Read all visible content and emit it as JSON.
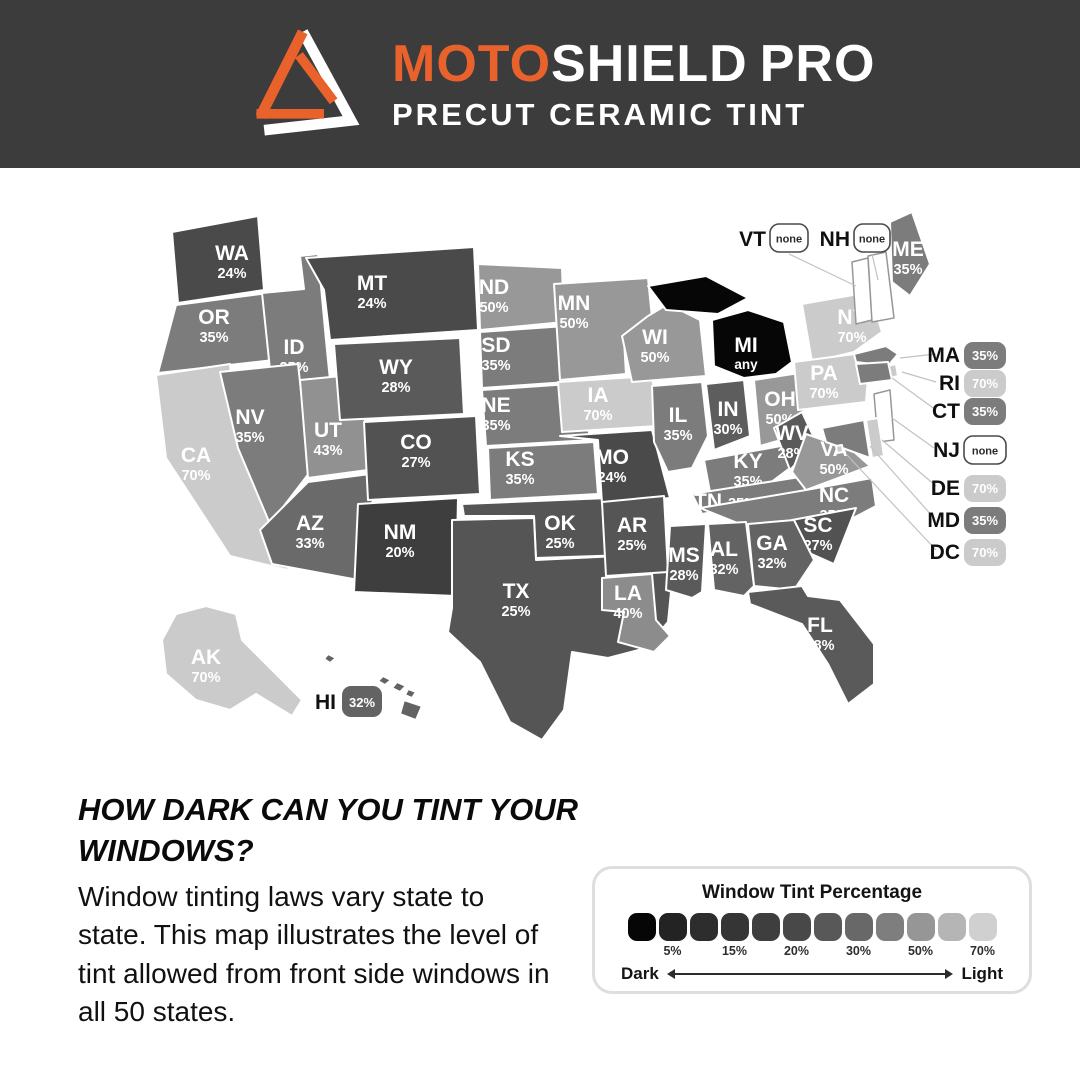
{
  "header": {
    "brand_moto": "MOTO",
    "brand_shield": "SHIELD",
    "brand_pro": "PRO",
    "subtitle": "PRECUT CERAMIC TINT",
    "background": "#3d3c3c",
    "accent": "#ea622b"
  },
  "map": {
    "states": [
      {
        "abbr": "WA",
        "value": "24%"
      },
      {
        "abbr": "OR",
        "value": "35%"
      },
      {
        "abbr": "CA",
        "value": "70%"
      },
      {
        "abbr": "ID",
        "value": "35%"
      },
      {
        "abbr": "NV",
        "value": "35%"
      },
      {
        "abbr": "UT",
        "value": "43%"
      },
      {
        "abbr": "AZ",
        "value": "33%"
      },
      {
        "abbr": "MT",
        "value": "24%"
      },
      {
        "abbr": "WY",
        "value": "28%"
      },
      {
        "abbr": "CO",
        "value": "27%"
      },
      {
        "abbr": "NM",
        "value": "20%"
      },
      {
        "abbr": "ND",
        "value": "50%"
      },
      {
        "abbr": "SD",
        "value": "35%"
      },
      {
        "abbr": "NE",
        "value": "35%"
      },
      {
        "abbr": "KS",
        "value": "35%"
      },
      {
        "abbr": "OK",
        "value": "25%"
      },
      {
        "abbr": "TX",
        "value": "25%"
      },
      {
        "abbr": "MN",
        "value": "50%"
      },
      {
        "abbr": "IA",
        "value": "70%"
      },
      {
        "abbr": "MO",
        "value": "24%"
      },
      {
        "abbr": "AR",
        "value": "25%"
      },
      {
        "abbr": "LA",
        "value": "40%"
      },
      {
        "abbr": "WI",
        "value": "50%"
      },
      {
        "abbr": "IL",
        "value": "35%"
      },
      {
        "abbr": "IN",
        "value": "30%"
      },
      {
        "abbr": "MI",
        "value": "any"
      },
      {
        "abbr": "OH",
        "value": "50%"
      },
      {
        "abbr": "KY",
        "value": "35%"
      },
      {
        "abbr": "TN",
        "value": "35%"
      },
      {
        "abbr": "WV",
        "value": "28%"
      },
      {
        "abbr": "VA",
        "value": "50%"
      },
      {
        "abbr": "NC",
        "value": "35%"
      },
      {
        "abbr": "SC",
        "value": "27%"
      },
      {
        "abbr": "GA",
        "value": "32%"
      },
      {
        "abbr": "AL",
        "value": "32%"
      },
      {
        "abbr": "MS",
        "value": "28%"
      },
      {
        "abbr": "FL",
        "value": "28%"
      },
      {
        "abbr": "NY",
        "value": "70%"
      },
      {
        "abbr": "PA",
        "value": "70%"
      },
      {
        "abbr": "ME",
        "value": "35%"
      },
      {
        "abbr": "VT",
        "value": "none"
      },
      {
        "abbr": "NH",
        "value": "none"
      },
      {
        "abbr": "MA",
        "value": "35%"
      },
      {
        "abbr": "RI",
        "value": "70%"
      },
      {
        "abbr": "CT",
        "value": "35%"
      },
      {
        "abbr": "NJ",
        "value": "none"
      },
      {
        "abbr": "DE",
        "value": "70%"
      },
      {
        "abbr": "MD",
        "value": "35%"
      },
      {
        "abbr": "DC",
        "value": "70%"
      },
      {
        "abbr": "AK",
        "value": "70%"
      },
      {
        "abbr": "HI",
        "value": "32%"
      }
    ]
  },
  "tint_colors": {
    "any": "#060606",
    "20%": "#3e3e3e",
    "24%": "#4a4a4a",
    "25%": "#555555",
    "27%": "#525252",
    "28%": "#5a5a5a",
    "30%": "#5d5d5d",
    "32%": "#636363",
    "33%": "#6a6a6a",
    "35%": "#7c7c7c",
    "40%": "#8c8c8c",
    "43%": "#919191",
    "50%": "#989898",
    "70%": "#cbcbcb",
    "none": "#ffffff"
  },
  "content": {
    "heading": "HOW DARK CAN YOU TINT YOUR WINDOWS?",
    "paragraph": "Window tinting laws vary state to state. This map illustrates the level of tint allowed from front side windows in all 50 states."
  },
  "legend": {
    "title": "Window Tint Percentage",
    "swatches": [
      "#060606",
      "#232323",
      "#2d2d2d",
      "#353535",
      "#3e3e3e",
      "#484848",
      "#585858",
      "#686868",
      "#7e7e7e",
      "#969696",
      "#b5b5b5",
      "#d0d0d0"
    ],
    "tick_labels": [
      "5%",
      "15%",
      "20%",
      "30%",
      "50%",
      "70%"
    ],
    "dark_label": "Dark",
    "light_label": "Light"
  }
}
